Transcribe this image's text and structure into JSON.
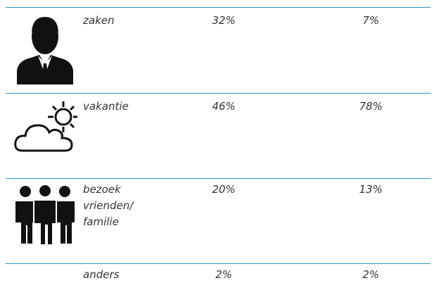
{
  "table": {
    "rows": [
      {
        "label": "zaken",
        "cells": [
          "32%",
          "7%"
        ]
      },
      {
        "label": "vakantie",
        "cells": [
          "46%",
          "78%"
        ]
      },
      {
        "label": "bezoek vrienden/ familie",
        "cells": [
          "20%",
          "13%"
        ]
      },
      {
        "label": "anders",
        "cells": [
          "2%",
          "2%"
        ]
      }
    ]
  }
}
